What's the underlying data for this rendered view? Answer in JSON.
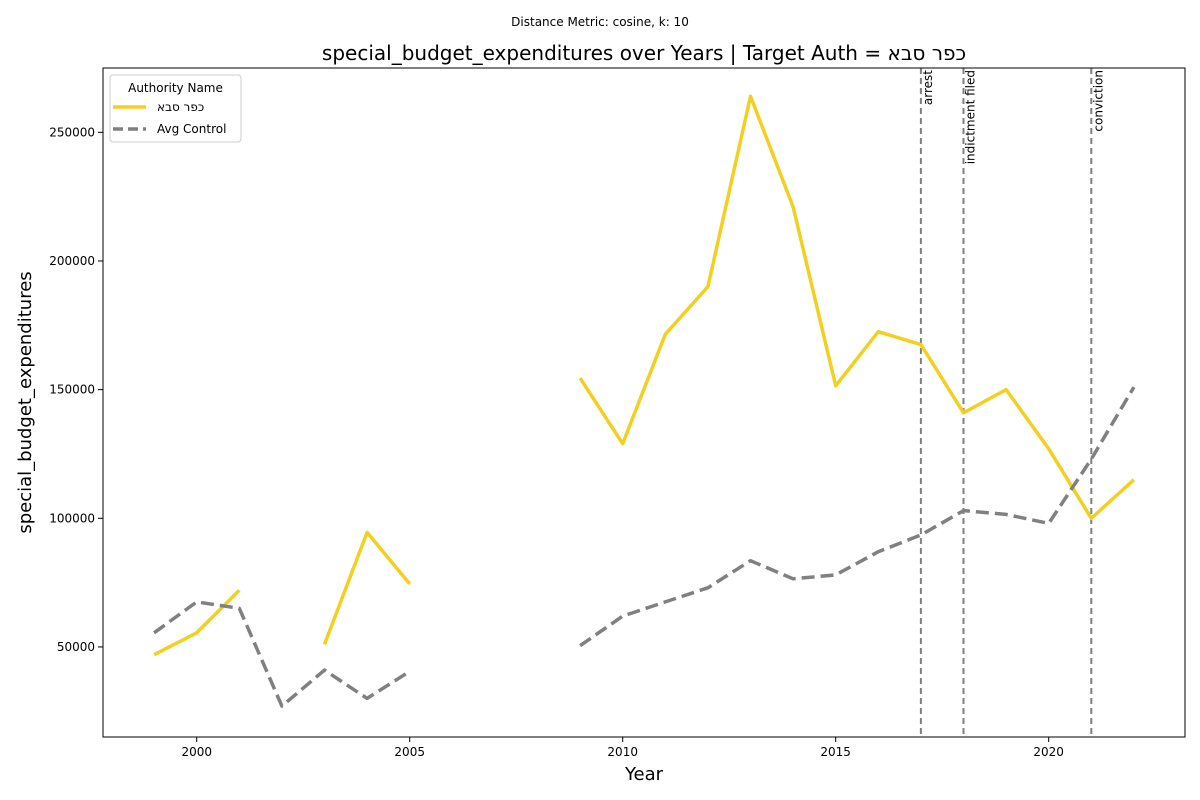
{
  "chart_data": {
    "type": "line",
    "suptitle": "Distance Metric: cosine, k: 10",
    "title": "special_budget_expenditures over Years | Target Auth = כפר סבא",
    "xlabel": "Year",
    "ylabel": "special_budget_expenditures",
    "xlim": [
      1997.8,
      2023.2
    ],
    "ylim": [
      15000,
      275000
    ],
    "xticks": [
      2000,
      2005,
      2010,
      2015,
      2020
    ],
    "yticks": [
      50000,
      100000,
      150000,
      200000,
      250000
    ],
    "grid": false,
    "legend": {
      "title": "Authority Name",
      "placement": "top-left"
    },
    "series": [
      {
        "name": "כפר סבא",
        "color": "#f2d022",
        "style": "solid",
        "points": [
          [
            1999,
            47000
          ],
          [
            2000,
            55500
          ],
          [
            2001,
            72000
          ],
          [
            2002,
            null
          ],
          [
            2003,
            51000
          ],
          [
            2004,
            94500
          ],
          [
            2005,
            74500
          ],
          [
            2006,
            null
          ],
          [
            2007,
            null
          ],
          [
            2008,
            null
          ],
          [
            2009,
            154500
          ],
          [
            2010,
            129000
          ],
          [
            2011,
            171500
          ],
          [
            2012,
            190000
          ],
          [
            2013,
            264000
          ],
          [
            2014,
            221000
          ],
          [
            2015,
            151500
          ],
          [
            2016,
            172500
          ],
          [
            2017,
            167500
          ],
          [
            2018,
            141000
          ],
          [
            2019,
            150000
          ],
          [
            2020,
            127000
          ],
          [
            2021,
            100000
          ],
          [
            2022,
            115000
          ]
        ]
      },
      {
        "name": "Avg Control",
        "color": "#808080",
        "style": "dashed",
        "points": [
          [
            1999,
            55500
          ],
          [
            2000,
            67500
          ],
          [
            2001,
            65000
          ],
          [
            2002,
            27000
          ],
          [
            2003,
            41000
          ],
          [
            2004,
            30000
          ],
          [
            2005,
            40500
          ],
          [
            2006,
            null
          ],
          [
            2007,
            null
          ],
          [
            2008,
            null
          ],
          [
            2009,
            50500
          ],
          [
            2010,
            62000
          ],
          [
            2011,
            67500
          ],
          [
            2012,
            73000
          ],
          [
            2013,
            83500
          ],
          [
            2014,
            76500
          ],
          [
            2015,
            78000
          ],
          [
            2016,
            87000
          ],
          [
            2017,
            93500
          ],
          [
            2018,
            103000
          ],
          [
            2019,
            101500
          ],
          [
            2020,
            98000
          ],
          [
            2021,
            123000
          ],
          [
            2022,
            151000
          ]
        ]
      }
    ],
    "annotations": [
      {
        "x": 2017,
        "label": "arrest"
      },
      {
        "x": 2018,
        "label": "indictment filed"
      },
      {
        "x": 2021,
        "label": "conviction"
      }
    ]
  }
}
